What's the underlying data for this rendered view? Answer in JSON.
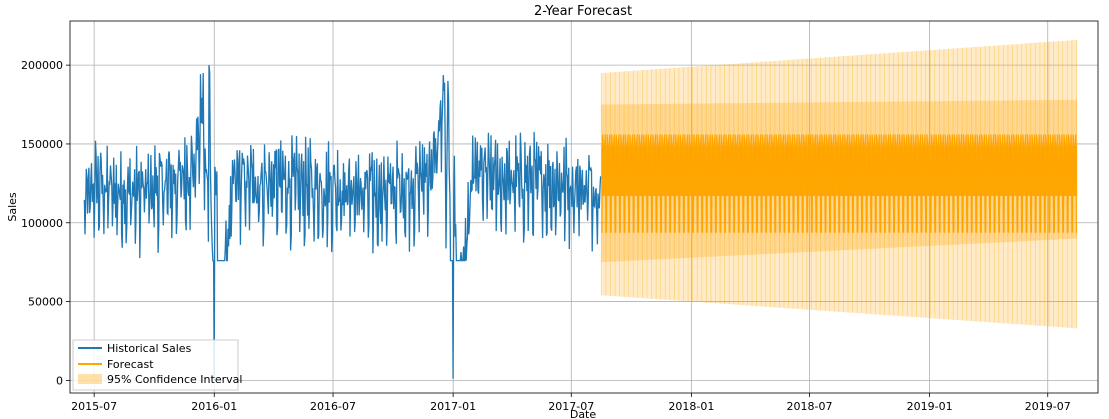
{
  "chart_data": {
    "type": "line",
    "title": "2-Year Forecast",
    "xlabel": "Date",
    "ylabel": "Sales",
    "x_axis_type": "date",
    "xlim": [
      "2015-05-25",
      "2019-09-16"
    ],
    "ylim": [
      -8000,
      228000
    ],
    "x_ticks": [
      "2015-07-01",
      "2016-01-01",
      "2016-07-01",
      "2017-01-01",
      "2017-07-01",
      "2018-01-01",
      "2018-07-01",
      "2019-01-01",
      "2019-07-01"
    ],
    "x_tick_labels": [
      "2015-07",
      "2016-01",
      "2016-07",
      "2017-01",
      "2017-07",
      "2018-01",
      "2018-07",
      "2019-01",
      "2019-07"
    ],
    "y_ticks": [
      0,
      50000,
      100000,
      150000,
      200000
    ],
    "y_tick_labels": [
      "0",
      "50000",
      "100000",
      "150000",
      "200000"
    ],
    "grid": true,
    "legend_position": "lower-left",
    "series": [
      {
        "name": "Historical Sales",
        "color": "#1f77b4",
        "kind": "line",
        "date_range": [
          "2015-06-15",
          "2017-08-15"
        ],
        "points": [
          {
            "x": "2015-06-15",
            "y": 110000
          },
          {
            "x": "2015-07-01",
            "y": 125000
          },
          {
            "x": "2015-08-01",
            "y": 120000
          },
          {
            "x": "2015-09-01",
            "y": 118000
          },
          {
            "x": "2015-10-01",
            "y": 122000
          },
          {
            "x": "2015-11-01",
            "y": 125000
          },
          {
            "x": "2015-12-01",
            "y": 135000
          },
          {
            "x": "2015-12-24",
            "y": 200000
          },
          {
            "x": "2016-01-01",
            "y": 0
          },
          {
            "x": "2016-02-01",
            "y": 128000
          },
          {
            "x": "2016-03-01",
            "y": 125000
          },
          {
            "x": "2016-04-01",
            "y": 126000
          },
          {
            "x": "2016-05-01",
            "y": 124000
          },
          {
            "x": "2016-06-01",
            "y": 122000
          },
          {
            "x": "2016-07-01",
            "y": 123000
          },
          {
            "x": "2016-08-01",
            "y": 120000
          },
          {
            "x": "2016-09-01",
            "y": 118000
          },
          {
            "x": "2016-10-01",
            "y": 121000
          },
          {
            "x": "2016-11-01",
            "y": 124000
          },
          {
            "x": "2016-12-01",
            "y": 135000
          },
          {
            "x": "2016-12-24",
            "y": 190000
          },
          {
            "x": "2017-01-01",
            "y": 1000
          },
          {
            "x": "2017-02-01",
            "y": 132000
          },
          {
            "x": "2017-03-01",
            "y": 128000
          },
          {
            "x": "2017-04-01",
            "y": 126000
          },
          {
            "x": "2017-05-01",
            "y": 127000
          },
          {
            "x": "2017-06-01",
            "y": 125000
          },
          {
            "x": "2017-07-01",
            "y": 124000
          },
          {
            "x": "2017-08-15",
            "y": 122000
          }
        ],
        "daily_range": [
          76000,
          170000
        ]
      },
      {
        "name": "Forecast",
        "color": "#ffa500",
        "kind": "line",
        "date_range": [
          "2017-08-16",
          "2019-08-15"
        ],
        "weekly_low": 94000,
        "weekly_high": 156000,
        "dense_band": [
          117000,
          149000
        ]
      },
      {
        "name": "95% Confidence Interval",
        "color": "#ffa500",
        "opacity": 0.35,
        "kind": "band",
        "date_range": [
          "2017-08-16",
          "2019-08-15"
        ],
        "upper_start": 195000,
        "upper_end": 216000,
        "lower_start": 54000,
        "lower_end": 33000,
        "inner_upper_start": 175000,
        "inner_upper_end": 178000,
        "inner_lower_start": 75000,
        "inner_lower_end": 90000
      }
    ]
  }
}
